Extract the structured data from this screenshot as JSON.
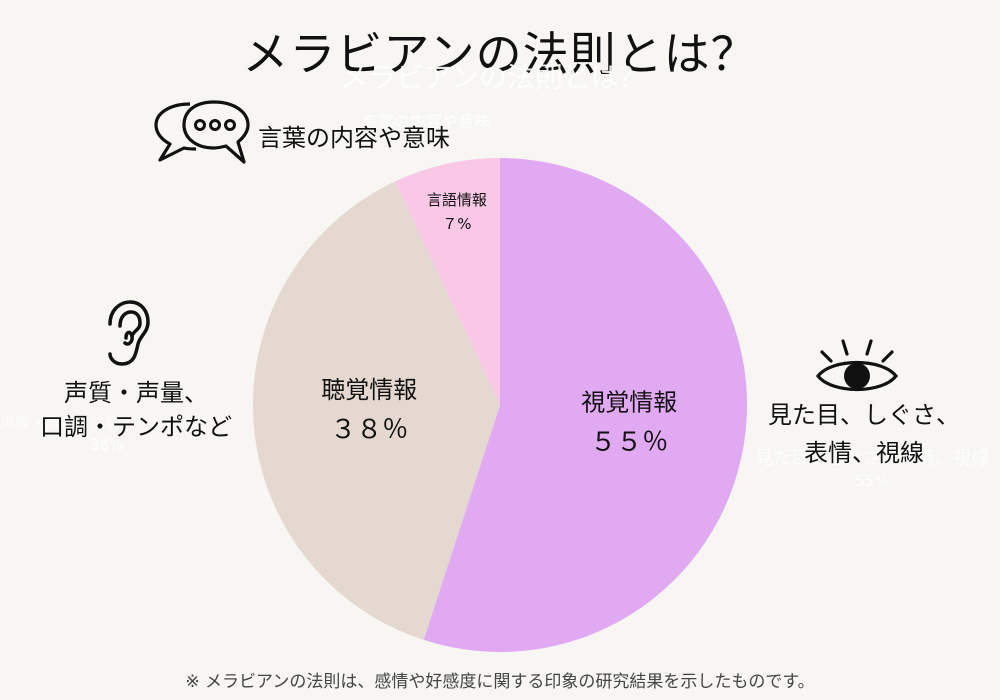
{
  "title": "メラビアンの法則とは？",
  "ghost_texts": {
    "title_shadow": "メラビアンの法則とは？",
    "words": "言葉の内容や意味",
    "voice": "声質・声量、口調・テンポなど",
    "voice_pct": "38%",
    "visual": "見た目、しぐさ、表情、視線",
    "visual_pct": "55%"
  },
  "annotations": {
    "words": "言葉の内容や意味",
    "voice_line1": "声質・声量、",
    "voice_line2": "口調・テンポなど",
    "visual_line1": "見た目、しぐさ、",
    "visual_line2": "表情、視線"
  },
  "icons": {
    "words": "speech-bubbles-icon",
    "voice": "ear-icon",
    "visual": "eye-icon"
  },
  "footnote": "※ メラビアンの法則は、感情や好感度に関する印象の研究結果を示したものです。",
  "chart_data": {
    "type": "pie",
    "title": "メラビアンの法則とは？",
    "slices": [
      {
        "label": "視覚情報",
        "value": 55,
        "value_label": "５５％",
        "color": "#e1a9f1",
        "text_color": "#111111"
      },
      {
        "label": "聴覚情報",
        "value": 38,
        "value_label": "３８％",
        "color": "#e4d8d0",
        "text_color": "#111111"
      },
      {
        "label": "言語情報",
        "value": 7,
        "value_label": "７%",
        "color": "#f9c8e6",
        "text_color": "#111111"
      }
    ],
    "start": "12 o'clock",
    "direction": "clockwise"
  }
}
